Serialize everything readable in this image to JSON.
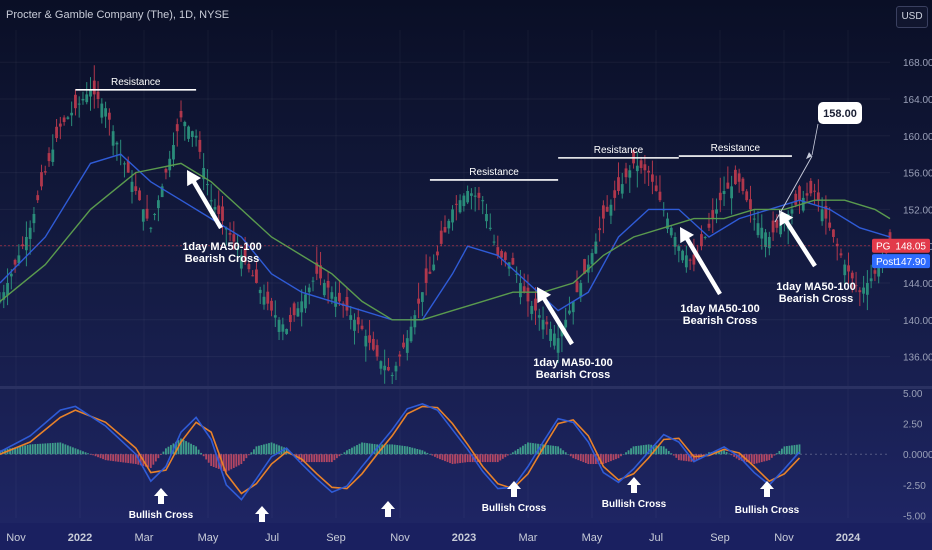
{
  "header": {
    "title": "Procter & Gamble Company (The), 1D, NYSE",
    "currency_button": "USD"
  },
  "colors": {
    "ma50": "#2f5bd6",
    "ma100": "#5a9a4e",
    "candle_up": "#2a8c7a",
    "candle_down": "#b0374c",
    "macd_line": "#2f5bd6",
    "signal_line": "#e8822a",
    "hist_up": "#3f9e8c",
    "hist_down": "#b24663",
    "annotation": "#ffffff",
    "pg_badge": "#e23a4a",
    "post_badge": "#2f6cff"
  },
  "price_axis": {
    "ticks": [
      "168.00",
      "164.00",
      "160.00",
      "156.00",
      "152.00",
      "148.00",
      "144.00",
      "140.00",
      "136.00"
    ],
    "tick_values": [
      168,
      164,
      160,
      156,
      152,
      148,
      144,
      140,
      136
    ],
    "range": [
      132.8,
      171.5
    ]
  },
  "badges": {
    "pg": {
      "label": "PG",
      "value": "148.05"
    },
    "post": {
      "label": "Post",
      "value": "147.90"
    }
  },
  "macd_axis": {
    "ticks": [
      "5.00",
      "2.50",
      "0.0000",
      "-2.50",
      "-5.00"
    ],
    "tick_values": [
      5,
      2.5,
      0,
      -2.5,
      -5
    ],
    "range": [
      -5.2,
      5.4
    ]
  },
  "time_axis": {
    "labels": [
      "Nov",
      "2022",
      "Mar",
      "May",
      "Jul",
      "Sep",
      "Nov",
      "2023",
      "Mar",
      "May",
      "Jul",
      "Sep",
      "Nov",
      "2024"
    ]
  },
  "annotations": {
    "resistance_label": "Resistance",
    "bearish_cross_line1": "1day MA50-100",
    "bearish_cross_line2": "Bearish Cross",
    "bullish_cross_label": "Bullish Cross",
    "target_label": "158.00",
    "target_value": 158.0
  },
  "chart_data": [
    {
      "type": "candlestick",
      "title": "Procter & Gamble Company (The), 1D, NYSE",
      "x": [
        "Nov 2021",
        "Jan 2022",
        "Mar 2022",
        "May 2022",
        "Jul 2022",
        "Sep 2022",
        "Nov 2022",
        "Jan 2023",
        "Mar 2023",
        "May 2023",
        "Jul 2023",
        "Sep 2023",
        "Nov 2023",
        "Jan 2024"
      ],
      "price_path": [
        [
          0,
          142
        ],
        [
          2,
          146
        ],
        [
          4,
          150
        ],
        [
          6,
          156
        ],
        [
          8,
          161
        ],
        [
          10,
          163
        ],
        [
          12,
          165
        ],
        [
          14,
          163
        ],
        [
          16,
          158
        ],
        [
          18,
          154
        ],
        [
          20,
          150
        ],
        [
          22,
          156
        ],
        [
          24,
          162
        ],
        [
          26,
          160
        ],
        [
          28,
          153
        ],
        [
          30,
          150
        ],
        [
          32,
          147
        ],
        [
          34,
          144
        ],
        [
          36,
          141
        ],
        [
          38,
          139
        ],
        [
          40,
          142
        ],
        [
          42,
          145
        ],
        [
          44,
          143
        ],
        [
          46,
          141
        ],
        [
          48,
          139
        ],
        [
          50,
          136
        ],
        [
          52,
          134
        ],
        [
          54,
          138
        ],
        [
          56,
          143
        ],
        [
          58,
          147
        ],
        [
          60,
          152
        ],
        [
          62,
          154
        ],
        [
          64,
          153
        ],
        [
          66,
          147
        ],
        [
          68,
          146
        ],
        [
          70,
          142
        ],
        [
          72,
          140
        ],
        [
          74,
          138
        ],
        [
          76,
          142
        ],
        [
          78,
          146
        ],
        [
          80,
          151
        ],
        [
          82,
          154
        ],
        [
          84,
          157
        ],
        [
          86,
          156
        ],
        [
          88,
          152
        ],
        [
          90,
          148
        ],
        [
          92,
          146
        ],
        [
          94,
          150
        ],
        [
          96,
          154
        ],
        [
          98,
          155
        ],
        [
          100,
          151
        ],
        [
          102,
          149
        ],
        [
          104,
          151
        ],
        [
          106,
          153
        ],
        [
          108,
          154
        ],
        [
          110,
          150
        ],
        [
          112,
          146
        ],
        [
          114,
          143
        ],
        [
          116,
          145
        ],
        [
          118,
          148
        ]
      ],
      "ma50_path": [
        [
          0,
          144
        ],
        [
          6,
          149
        ],
        [
          12,
          157
        ],
        [
          16,
          158
        ],
        [
          20,
          155
        ],
        [
          24,
          153
        ],
        [
          28,
          151
        ],
        [
          32,
          149
        ],
        [
          36,
          145
        ],
        [
          40,
          143
        ],
        [
          44,
          142
        ],
        [
          48,
          141
        ],
        [
          52,
          140
        ],
        [
          56,
          140
        ],
        [
          60,
          145
        ],
        [
          62,
          148
        ],
        [
          66,
          147
        ],
        [
          70,
          144
        ],
        [
          74,
          141
        ],
        [
          78,
          143
        ],
        [
          82,
          149
        ],
        [
          86,
          152
        ],
        [
          90,
          152
        ],
        [
          94,
          149
        ],
        [
          98,
          151
        ],
        [
          102,
          152
        ],
        [
          106,
          153
        ],
        [
          110,
          152
        ],
        [
          114,
          150
        ],
        [
          118,
          149
        ]
      ],
      "ma100_path": [
        [
          0,
          142
        ],
        [
          6,
          146
        ],
        [
          12,
          152
        ],
        [
          18,
          156
        ],
        [
          24,
          157
        ],
        [
          28,
          155
        ],
        [
          32,
          152
        ],
        [
          36,
          149
        ],
        [
          40,
          147
        ],
        [
          44,
          145
        ],
        [
          48,
          142
        ],
        [
          52,
          140
        ],
        [
          56,
          140
        ],
        [
          60,
          141
        ],
        [
          64,
          142
        ],
        [
          68,
          143
        ],
        [
          72,
          143
        ],
        [
          76,
          144
        ],
        [
          80,
          147
        ],
        [
          84,
          149
        ],
        [
          88,
          150
        ],
        [
          92,
          151
        ],
        [
          96,
          151
        ],
        [
          100,
          152
        ],
        [
          104,
          152
        ],
        [
          108,
          153
        ],
        [
          112,
          153
        ],
        [
          116,
          152
        ],
        [
          118,
          151
        ]
      ],
      "resistance_levels": [
        {
          "x": [
            10,
            26
          ],
          "value": 165.0
        },
        {
          "x": [
            57,
            74
          ],
          "value": 155.2
        },
        {
          "x": [
            74,
            90
          ],
          "value": 157.6
        },
        {
          "x": [
            90,
            105
          ],
          "value": 157.8
        }
      ],
      "target_price": 158.0,
      "last_price": 148.05,
      "post_market_price": 147.9
    },
    {
      "type": "line",
      "title": "",
      "series": [
        {
          "name": "",
          "values": []
        }
      ],
      "macd_path": [
        [
          0,
          0.2
        ],
        [
          4,
          1.5
        ],
        [
          8,
          3.6
        ],
        [
          10,
          3.9
        ],
        [
          14,
          2.3
        ],
        [
          18,
          0.0
        ],
        [
          20,
          -2.2
        ],
        [
          22,
          -1.0
        ],
        [
          24,
          1.8
        ],
        [
          26,
          3.0
        ],
        [
          28,
          1.2
        ],
        [
          30,
          -2.5
        ],
        [
          32,
          -3.7
        ],
        [
          34,
          -2.0
        ],
        [
          36,
          -0.2
        ],
        [
          38,
          0.5
        ],
        [
          40,
          -0.8
        ],
        [
          42,
          -2.0
        ],
        [
          44,
          -3.1
        ],
        [
          46,
          -2.6
        ],
        [
          48,
          -1.0
        ],
        [
          50,
          0.5
        ],
        [
          52,
          2.0
        ],
        [
          54,
          3.7
        ],
        [
          56,
          4.1
        ],
        [
          58,
          3.6
        ],
        [
          60,
          2.0
        ],
        [
          62,
          0.4
        ],
        [
          64,
          -1.4
        ],
        [
          66,
          -2.8
        ],
        [
          68,
          -2.7
        ],
        [
          70,
          -1.0
        ],
        [
          72,
          1.0
        ],
        [
          74,
          2.9
        ],
        [
          76,
          2.6
        ],
        [
          78,
          1.0
        ],
        [
          80,
          -1.5
        ],
        [
          82,
          -2.3
        ],
        [
          84,
          -1.2
        ],
        [
          86,
          0.2
        ],
        [
          88,
          1.6
        ],
        [
          90,
          1.0
        ],
        [
          92,
          -0.6
        ],
        [
          94,
          0.0
        ],
        [
          96,
          0.6
        ],
        [
          98,
          -0.2
        ],
        [
          100,
          -1.5
        ],
        [
          102,
          -2.5
        ],
        [
          104,
          -1.2
        ],
        [
          106,
          0.2
        ]
      ],
      "signal_path": [
        [
          0,
          0.0
        ],
        [
          4,
          1.0
        ],
        [
          8,
          3.0
        ],
        [
          10,
          3.6
        ],
        [
          14,
          2.6
        ],
        [
          18,
          0.5
        ],
        [
          20,
          -1.5
        ],
        [
          22,
          -1.3
        ],
        [
          24,
          1.0
        ],
        [
          26,
          2.6
        ],
        [
          28,
          1.8
        ],
        [
          30,
          -1.6
        ],
        [
          32,
          -3.2
        ],
        [
          34,
          -2.4
        ],
        [
          36,
          -0.8
        ],
        [
          38,
          0.2
        ],
        [
          40,
          -0.4
        ],
        [
          42,
          -1.6
        ],
        [
          44,
          -2.7
        ],
        [
          46,
          -2.8
        ],
        [
          48,
          -1.6
        ],
        [
          50,
          0.0
        ],
        [
          52,
          1.5
        ],
        [
          54,
          3.3
        ],
        [
          56,
          3.9
        ],
        [
          58,
          3.8
        ],
        [
          60,
          2.5
        ],
        [
          62,
          0.8
        ],
        [
          64,
          -1.0
        ],
        [
          66,
          -2.4
        ],
        [
          68,
          -2.8
        ],
        [
          70,
          -1.6
        ],
        [
          72,
          0.5
        ],
        [
          74,
          2.5
        ],
        [
          76,
          2.8
        ],
        [
          78,
          1.5
        ],
        [
          80,
          -1.0
        ],
        [
          82,
          -2.1
        ],
        [
          84,
          -1.6
        ],
        [
          86,
          -0.3
        ],
        [
          88,
          1.2
        ],
        [
          90,
          1.3
        ],
        [
          92,
          -0.2
        ],
        [
          94,
          -0.1
        ],
        [
          96,
          0.4
        ],
        [
          98,
          0.1
        ],
        [
          100,
          -1.0
        ],
        [
          102,
          -2.2
        ],
        [
          104,
          -1.6
        ],
        [
          106,
          -0.3
        ]
      ],
      "histogram_note": "MACD minus signal",
      "ylim": [
        -5.0,
        5.0
      ]
    }
  ]
}
